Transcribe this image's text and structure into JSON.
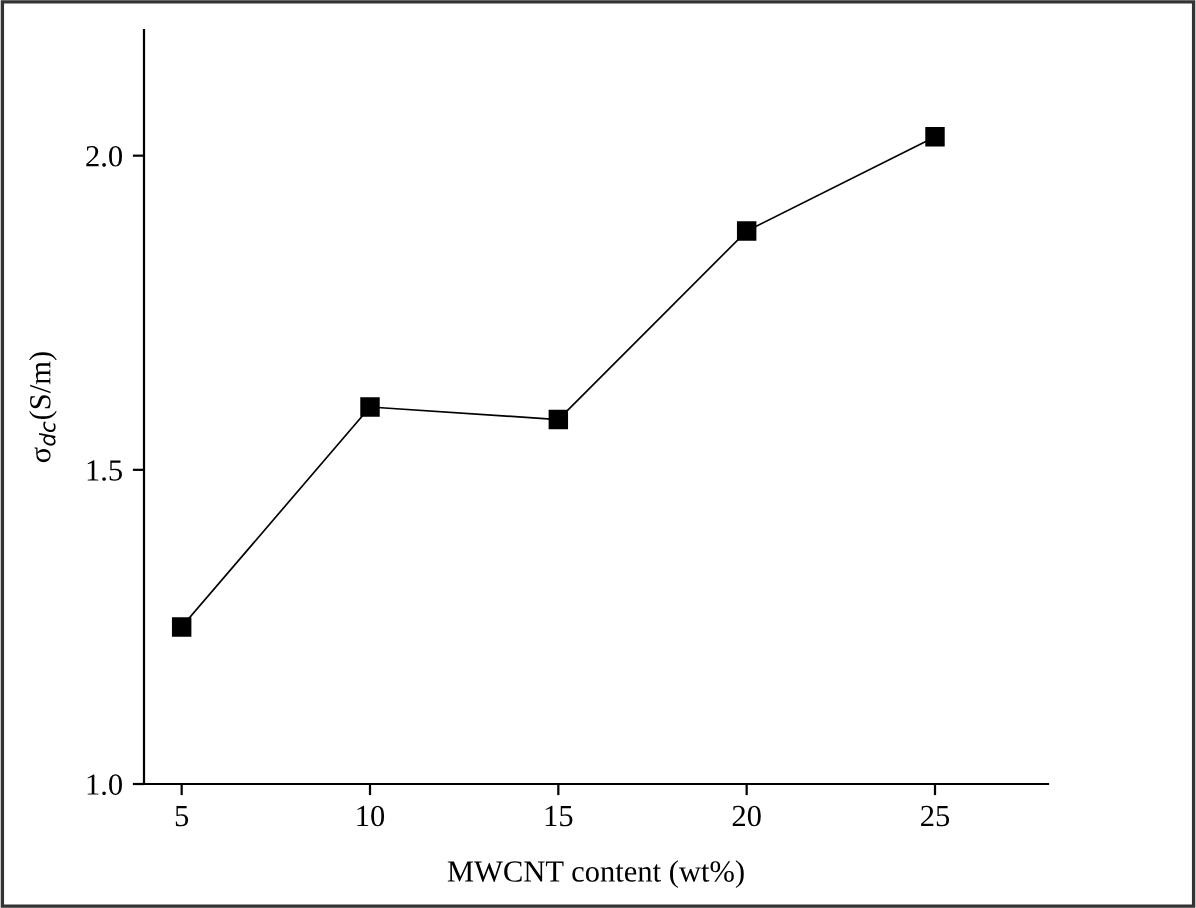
{
  "chart_data": {
    "type": "line",
    "xlabel": "MWCNT content (wt%)",
    "ylabel": "σ$_{dc}$(S/m)",
    "x": [
      5,
      10,
      15,
      20,
      25
    ],
    "series": [
      {
        "color": "#000000",
        "values": [
          1.25,
          1.6,
          1.58,
          1.88,
          2.03
        ]
      }
    ],
    "marker": "square",
    "line_style": "solid",
    "xlim": [
      4,
      28
    ],
    "xticks": [
      5,
      10,
      15,
      20,
      25
    ],
    "ylim": [
      1.0,
      2.2
    ],
    "yticks": [
      {
        "value": 1.0,
        "label": "1.0"
      },
      {
        "value": 1.5,
        "label": "1.5"
      },
      {
        "value": 2.0,
        "label": "2.0"
      }
    ],
    "grid": false
  }
}
